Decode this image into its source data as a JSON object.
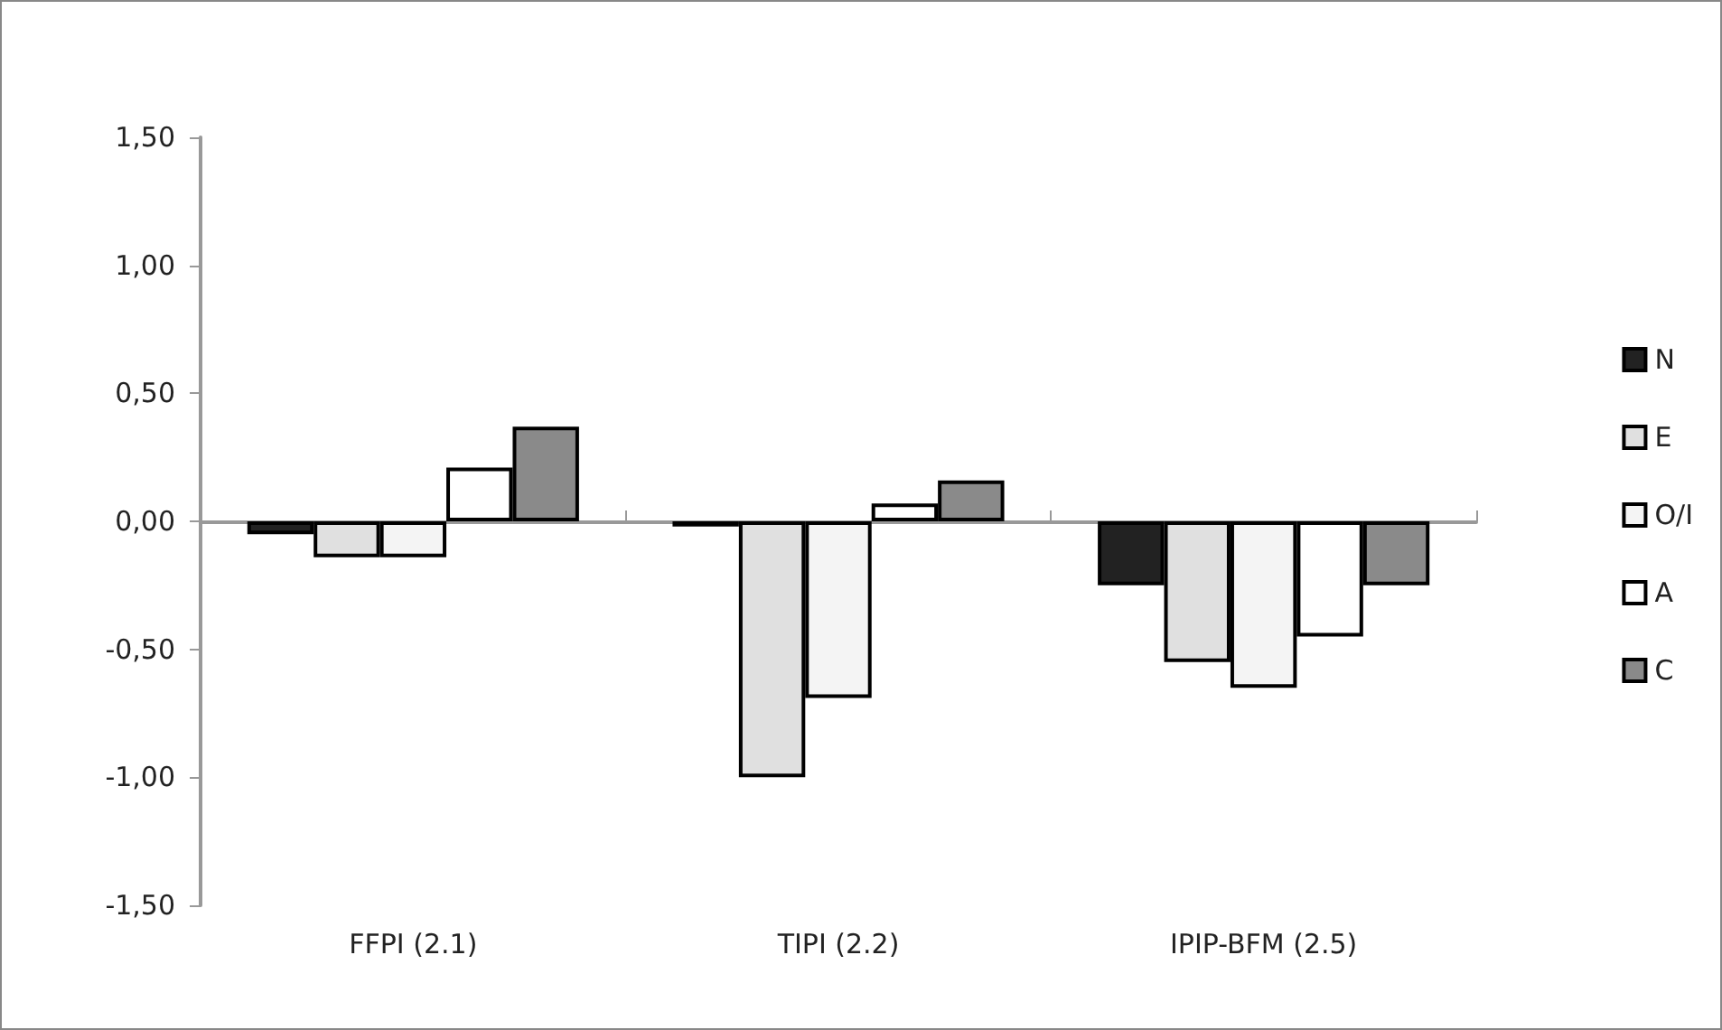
{
  "chart_data": {
    "type": "bar",
    "categories": [
      "FFPI (2.1)",
      "TIPI (2.2)",
      "IPIP-BFM (2.5)"
    ],
    "series": [
      {
        "name": "N",
        "color": "#222222",
        "values": [
          -0.05,
          -0.02,
          -0.25
        ]
      },
      {
        "name": "E",
        "color": "#e0e0e0",
        "values": [
          -0.14,
          -1.0,
          -0.55
        ]
      },
      {
        "name": "O/I",
        "color": "#f4f4f4",
        "values": [
          -0.14,
          -0.69,
          -0.65
        ]
      },
      {
        "name": "A",
        "color": "#ffffff",
        "values": [
          0.21,
          0.07,
          -0.45
        ]
      },
      {
        "name": "C",
        "color": "#8a8a8a",
        "values": [
          0.37,
          0.16,
          -0.25
        ]
      }
    ],
    "ylim": [
      -1.5,
      1.5
    ],
    "yticks": [
      {
        "value": -1.5,
        "label": "-1,50"
      },
      {
        "value": -1,
        "label": "-1,00"
      },
      {
        "value": -0.5,
        "label": "-0,50"
      },
      {
        "value": 0,
        "label": "0,00"
      },
      {
        "value": 0.5,
        "label": "0,50"
      },
      {
        "value": 1,
        "label": "1,00"
      },
      {
        "value": 1.5,
        "label": "1,50"
      }
    ],
    "legend": "right"
  }
}
